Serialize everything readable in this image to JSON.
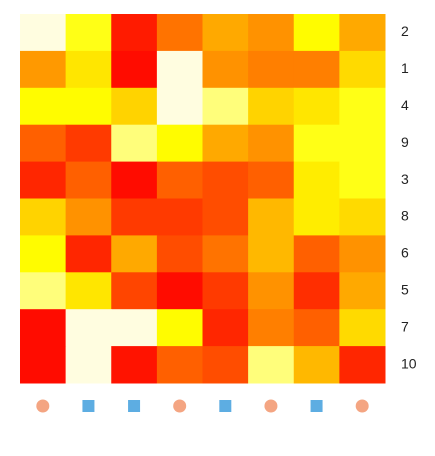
{
  "chart_data": {
    "type": "heatmap",
    "rows": [
      "2",
      "1",
      "4",
      "9",
      "3",
      "8",
      "6",
      "5",
      "7",
      "10"
    ],
    "column_markers": [
      "circle",
      "square",
      "square",
      "circle",
      "square",
      "circle",
      "square",
      "circle"
    ],
    "marker_colors": {
      "circle": "#f4a582",
      "square": "#5dade2"
    },
    "colormap": [
      "#ff0000",
      "#ff8000",
      "#ffff00",
      "#fffde0"
    ],
    "zlim": [
      0,
      1
    ],
    "values": [
      [
        1.0,
        0.7,
        0.07,
        0.3,
        0.44,
        0.38,
        0.66,
        0.44
      ],
      [
        0.4,
        0.6,
        0.03,
        1.0,
        0.38,
        0.33,
        0.33,
        0.57
      ],
      [
        0.66,
        0.66,
        0.55,
        1.0,
        0.85,
        0.55,
        0.6,
        0.7
      ],
      [
        0.25,
        0.15,
        0.85,
        0.66,
        0.44,
        0.38,
        0.7,
        0.7
      ],
      [
        0.1,
        0.25,
        0.03,
        0.25,
        0.2,
        0.25,
        0.62,
        0.7
      ],
      [
        0.55,
        0.38,
        0.15,
        0.15,
        0.2,
        0.48,
        0.62,
        0.57
      ],
      [
        0.66,
        0.1,
        0.44,
        0.2,
        0.3,
        0.48,
        0.25,
        0.38
      ],
      [
        0.85,
        0.6,
        0.18,
        0.03,
        0.15,
        0.38,
        0.12,
        0.44
      ],
      [
        0.03,
        1.0,
        1.0,
        0.66,
        0.1,
        0.33,
        0.25,
        0.57
      ],
      [
        0.03,
        1.0,
        0.05,
        0.25,
        0.2,
        0.85,
        0.48,
        0.1
      ]
    ]
  }
}
